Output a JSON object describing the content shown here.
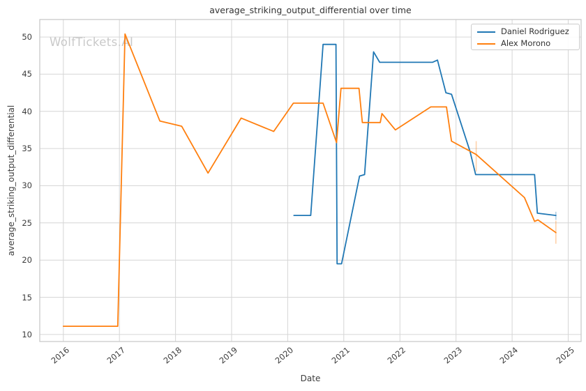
{
  "title": "average_striking_output_differential over time",
  "watermark": "WolfTickets.AI",
  "chart_data": {
    "type": "line",
    "title": "average_striking_output_differential over time",
    "xlabel": "Date",
    "ylabel": "average_striking_output_differential",
    "xlim": [
      2015.58,
      2025.23
    ],
    "ylim": [
      9.05,
      52.35
    ],
    "x_tick_labels": [
      "2016",
      "2017",
      "2018",
      "2019",
      "2020",
      "2021",
      "2022",
      "2023",
      "2024",
      "2025"
    ],
    "y_tick_labels": [
      "10",
      "15",
      "20",
      "25",
      "30",
      "35",
      "40",
      "45",
      "50"
    ],
    "grid": true,
    "legend_position": "top-right",
    "series": [
      {
        "name": "Daniel Rodriguez",
        "color": "#1f77b4",
        "points": [
          [
            2020.11,
            26.0
          ],
          [
            2020.41,
            26.0
          ],
          [
            2020.63,
            49.0
          ],
          [
            2020.86,
            49.0
          ],
          [
            2020.88,
            19.5
          ],
          [
            2020.96,
            19.5
          ],
          [
            2021.28,
            31.3
          ],
          [
            2021.37,
            31.5
          ],
          [
            2021.53,
            48.0
          ],
          [
            2021.64,
            46.6
          ],
          [
            2022.58,
            46.6
          ],
          [
            2022.67,
            46.9
          ],
          [
            2022.82,
            42.5
          ],
          [
            2022.92,
            42.3
          ],
          [
            2023.25,
            34.6
          ],
          [
            2023.35,
            31.5
          ],
          [
            2024.4,
            31.5
          ],
          [
            2024.45,
            26.3
          ],
          [
            2024.78,
            26.0
          ]
        ]
      },
      {
        "name": "Alex Morono",
        "color": "#ff7f0e",
        "points": [
          [
            2016.0,
            11.1
          ],
          [
            2016.97,
            11.1
          ],
          [
            2017.1,
            50.4
          ],
          [
            2017.72,
            38.7
          ],
          [
            2018.11,
            38.0
          ],
          [
            2018.58,
            31.7
          ],
          [
            2019.17,
            39.1
          ],
          [
            2019.75,
            37.3
          ],
          [
            2020.1,
            41.1
          ],
          [
            2020.63,
            41.1
          ],
          [
            2020.87,
            35.8
          ],
          [
            2020.95,
            43.1
          ],
          [
            2021.27,
            43.1
          ],
          [
            2021.33,
            38.5
          ],
          [
            2021.65,
            38.5
          ],
          [
            2021.68,
            39.7
          ],
          [
            2021.92,
            37.5
          ],
          [
            2022.55,
            40.6
          ],
          [
            2022.83,
            40.6
          ],
          [
            2022.92,
            36.0
          ],
          [
            2023.36,
            34.2
          ],
          [
            2024.22,
            28.4
          ],
          [
            2024.4,
            25.2
          ],
          [
            2024.46,
            25.4
          ],
          [
            2024.78,
            23.7
          ]
        ]
      }
    ],
    "error_bars": [
      {
        "series": "Alex Morono",
        "x": 2023.36,
        "y": 34.2,
        "y_low": 31.9,
        "y_high": 36.0
      },
      {
        "series": "Alex Morono",
        "x": 2024.78,
        "y": 23.7,
        "y_low": 22.2,
        "y_high": 25.3
      },
      {
        "series": "Daniel Rodriguez",
        "x": 2024.78,
        "y": 26.0,
        "y_low": 25.4,
        "y_high": 26.5
      }
    ],
    "colors": {
      "grid": "#d6d6d6",
      "spine": "#c6c6c6",
      "text": "#3d3d3d",
      "watermark": "#c9c9c9"
    }
  }
}
